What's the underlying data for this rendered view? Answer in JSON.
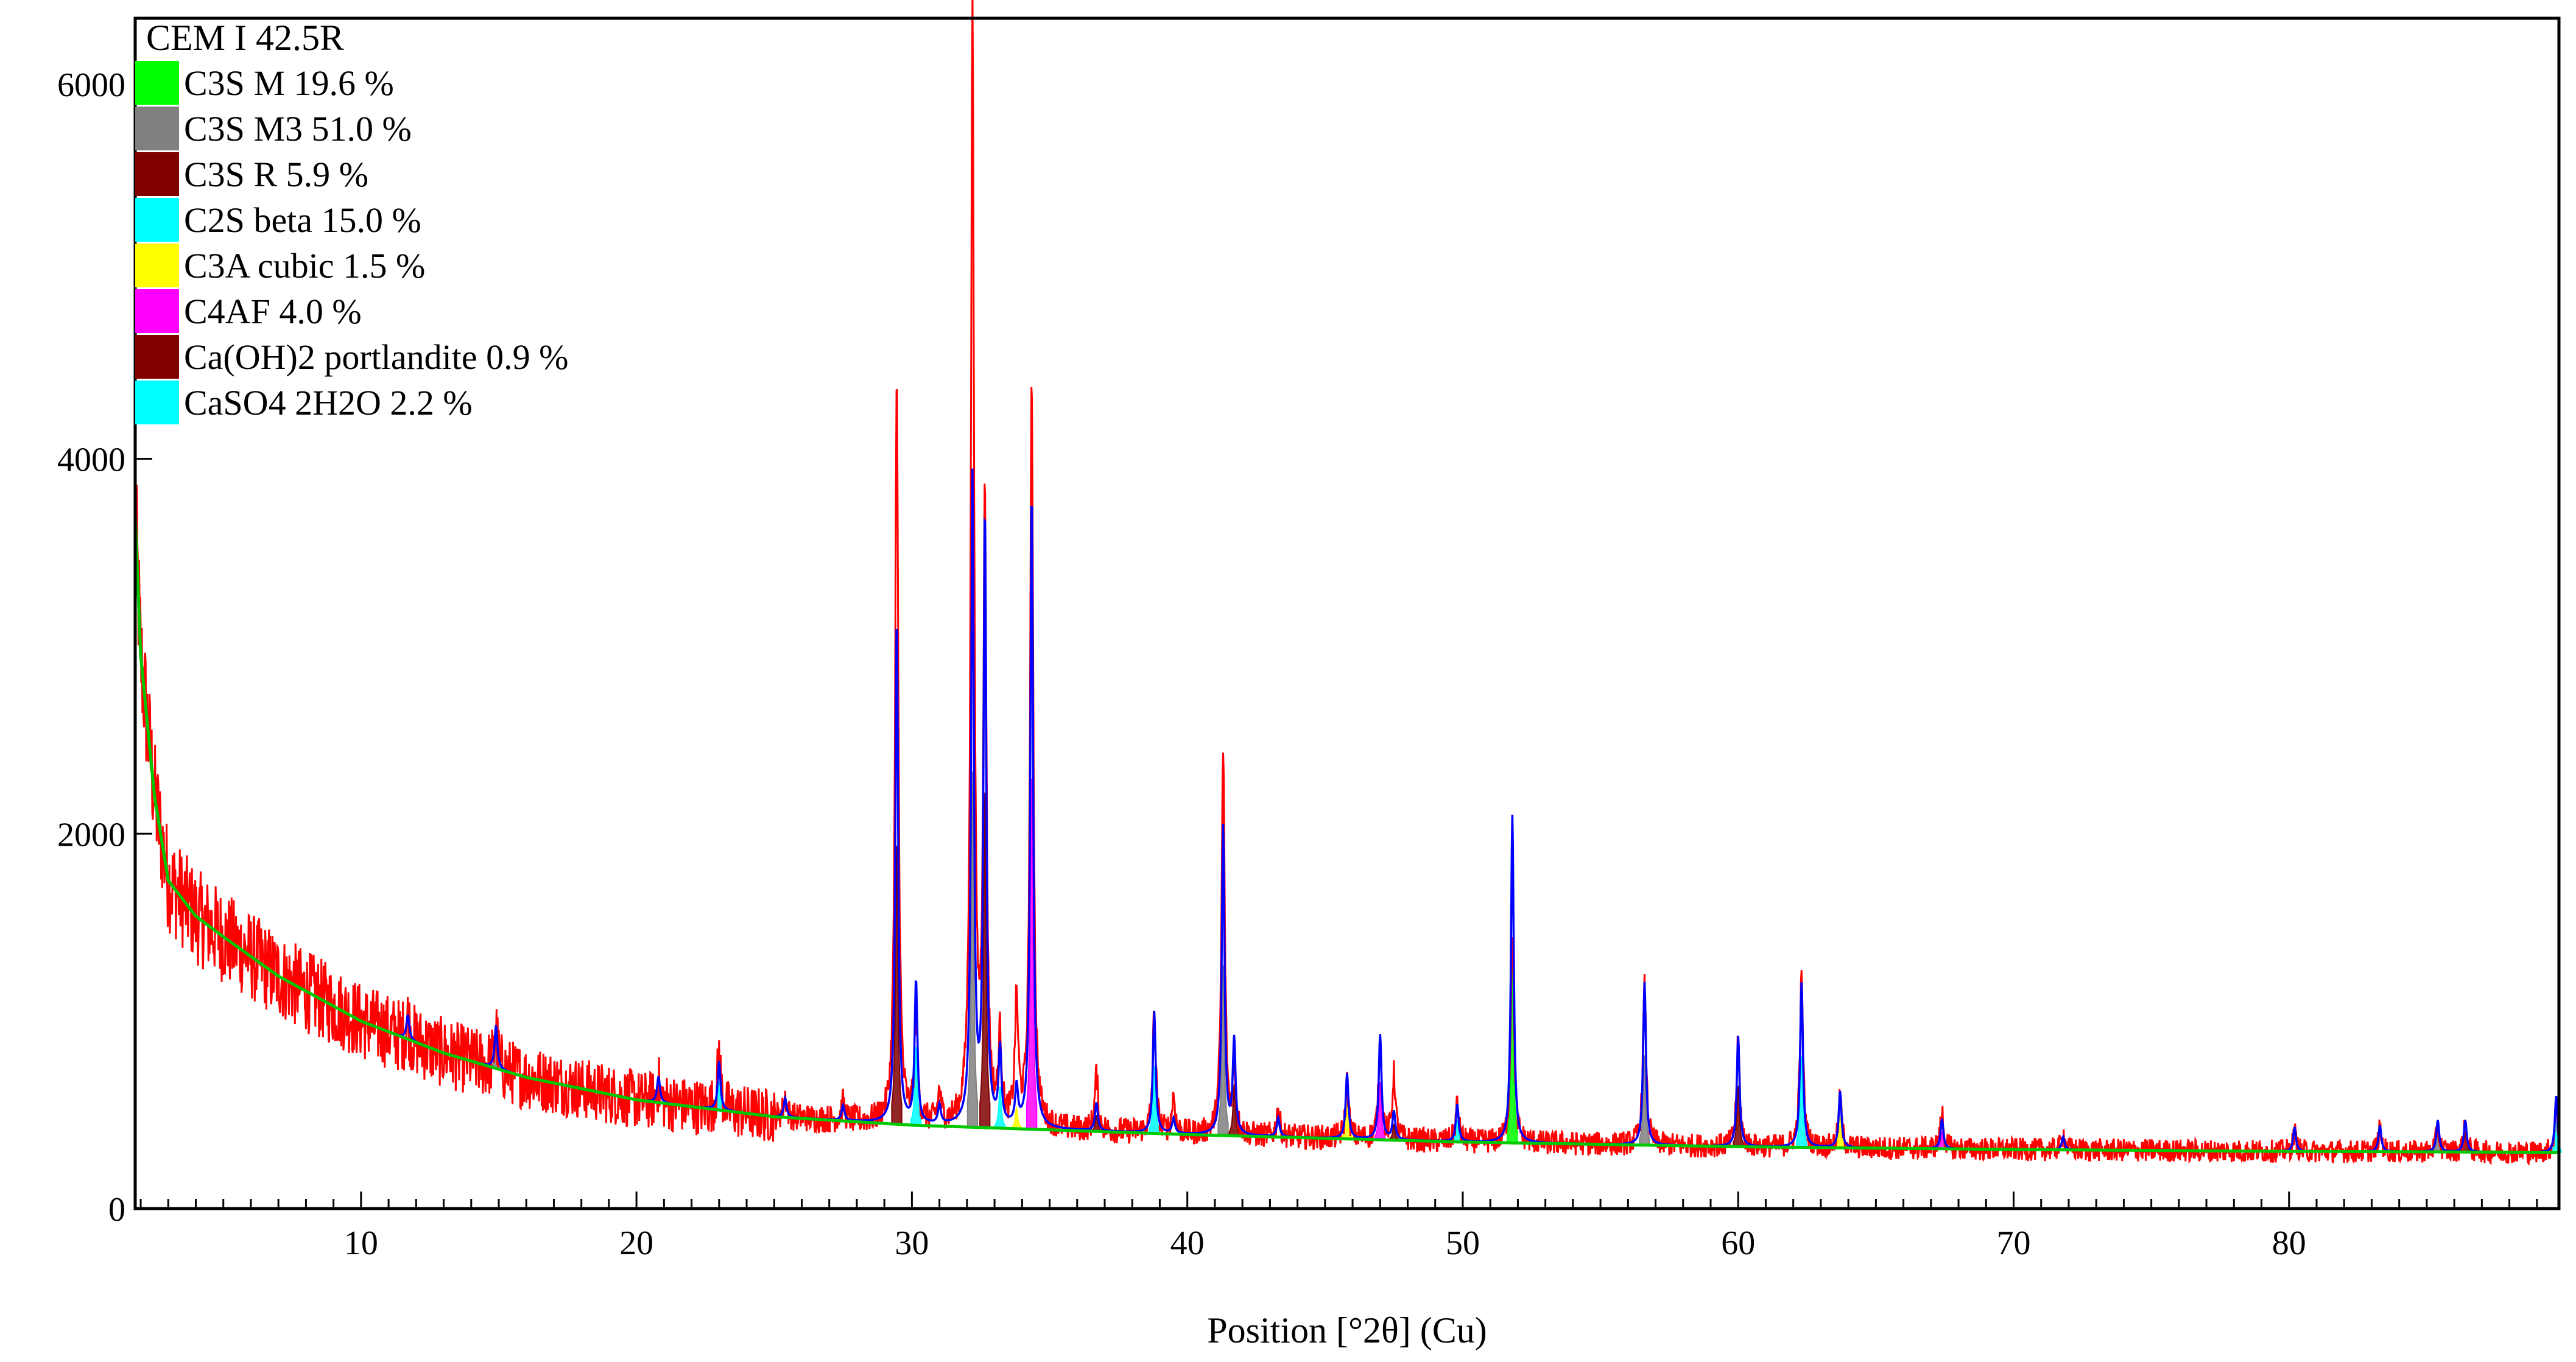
{
  "chart_data": {
    "type": "line",
    "title": "CEM I 42.5R",
    "xlabel": "Position [°2θ] (Cu)",
    "ylabel": "",
    "xlim": [
      1.8,
      89.8
    ],
    "ylim": [
      0,
      6350
    ],
    "x_ticks": [
      10,
      20,
      30,
      40,
      50,
      60,
      70,
      80
    ],
    "y_ticks": [
      0,
      2000,
      4000,
      6000
    ],
    "grid": false,
    "legend_position": "top-left",
    "legend": [
      {
        "label": "C3S M 19.6 %",
        "color": "#00ff00"
      },
      {
        "label": "C3S M3 51.0 %",
        "color": "#808080"
      },
      {
        "label": "C3S R 5.9 %",
        "color": "#800000"
      },
      {
        "label": "C2S beta 15.0 %",
        "color": "#00ffff"
      },
      {
        "label": "C3A cubic 1.5 %",
        "color": "#ffff00"
      },
      {
        "label": "C4AF 4.0 %",
        "color": "#ff00ff"
      },
      {
        "label": "Ca(OH)2 portlandite 0.9 %",
        "color": "#800000"
      },
      {
        "label": "CaSO4 2H2O 2.2 %",
        "color": "#00ffff"
      }
    ],
    "series_colors": {
      "observed": "#ff0000",
      "calculated": "#0000ff",
      "background": "#00c800"
    },
    "background_points": [
      [
        1.8,
        3700
      ],
      [
        2.0,
        2950
      ],
      [
        2.5,
        2200
      ],
      [
        3.0,
        1750
      ],
      [
        4,
        1560
      ],
      [
        5,
        1450
      ],
      [
        7,
        1240
      ],
      [
        10,
        1000
      ],
      [
        13,
        830
      ],
      [
        16,
        700
      ],
      [
        20,
        580
      ],
      [
        25,
        490
      ],
      [
        30,
        445
      ],
      [
        35,
        420
      ],
      [
        40,
        395
      ],
      [
        50,
        355
      ],
      [
        60,
        330
      ],
      [
        70,
        315
      ],
      [
        80,
        305
      ],
      [
        89.8,
        300
      ]
    ],
    "peaks": [
      {
        "x": 11.7,
        "y": 130,
        "obs": 110
      },
      {
        "x": 14.9,
        "y": 230,
        "obs": 210
      },
      {
        "x": 20.8,
        "y": 140,
        "obs": 100
      },
      {
        "x": 23.0,
        "y": 260,
        "obs": 320
      },
      {
        "x": 25.4,
        "y": 100,
        "obs": 110
      },
      {
        "x": 27.5,
        "y": 80,
        "obs": 90
      },
      {
        "x": 29.45,
        "y": 2700,
        "obs": 3950
      },
      {
        "x": 30.15,
        "y": 760,
        "obs": 550
      },
      {
        "x": 31.0,
        "y": 100,
        "obs": 160
      },
      {
        "x": 32.2,
        "y": 3450,
        "obs": 5900
      },
      {
        "x": 32.65,
        "y": 3250,
        "obs": 3300
      },
      {
        "x": 33.2,
        "y": 400,
        "obs": 450
      },
      {
        "x": 33.8,
        "y": 200,
        "obs": 650
      },
      {
        "x": 34.35,
        "y": 3400,
        "obs": 3950
      },
      {
        "x": 36.7,
        "y": 150,
        "obs": 300
      },
      {
        "x": 38.8,
        "y": 650,
        "obs": 650
      },
      {
        "x": 39.5,
        "y": 80,
        "obs": 200
      },
      {
        "x": 41.3,
        "y": 1650,
        "obs": 2050
      },
      {
        "x": 41.7,
        "y": 500,
        "obs": 350
      },
      {
        "x": 43.3,
        "y": 100,
        "obs": 150
      },
      {
        "x": 45.8,
        "y": 350,
        "obs": 300
      },
      {
        "x": 47.0,
        "y": 560,
        "obs": 520
      },
      {
        "x": 47.5,
        "y": 150,
        "obs": 350
      },
      {
        "x": 49.8,
        "y": 200,
        "obs": 200
      },
      {
        "x": 51.8,
        "y": 1750,
        "obs": 1150
      },
      {
        "x": 56.6,
        "y": 870,
        "obs": 850
      },
      {
        "x": 60.0,
        "y": 590,
        "obs": 570
      },
      {
        "x": 62.3,
        "y": 880,
        "obs": 900
      },
      {
        "x": 63.7,
        "y": 300,
        "obs": 270
      },
      {
        "x": 67.4,
        "y": 160,
        "obs": 200
      },
      {
        "x": 71.8,
        "y": 70,
        "obs": 90
      },
      {
        "x": 80.2,
        "y": 130,
        "obs": 100
      },
      {
        "x": 83.3,
        "y": 140,
        "obs": 120
      },
      {
        "x": 85.4,
        "y": 170,
        "obs": 130
      },
      {
        "x": 86.4,
        "y": 170,
        "obs": 150
      },
      {
        "x": 89.7,
        "y": 300,
        "obs": 250
      }
    ]
  }
}
